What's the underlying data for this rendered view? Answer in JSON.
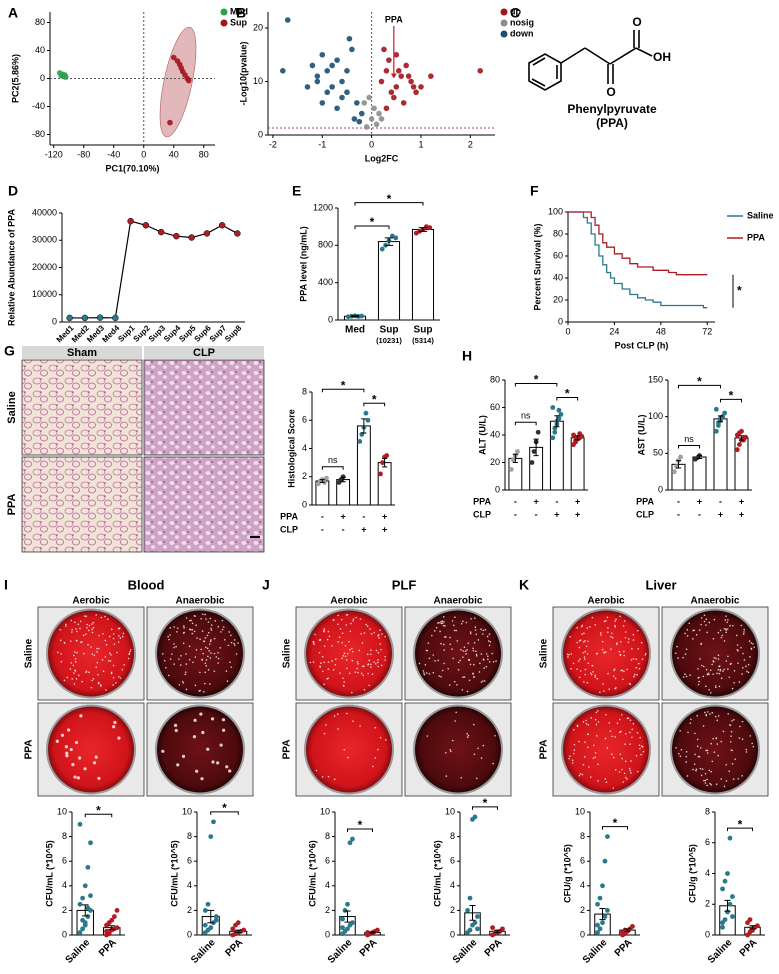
{
  "chart_data": [
    {
      "type": "scatter",
      "panel": "A",
      "xlabel": "PC1(70.10%)",
      "ylabel": "PC2(5.86%)",
      "xlim": [
        -125,
        95
      ],
      "xticks": [
        -120,
        -80,
        -40,
        0,
        40,
        80
      ],
      "ylim": [
        -95,
        95
      ],
      "yticks": [
        -80,
        -40,
        0,
        40,
        80
      ],
      "hline": 0,
      "vline": 0,
      "legend": "right",
      "series": [
        {
          "name": "Med",
          "color": "#2e9e4f",
          "x": [
            -112,
            -110,
            -108,
            -107,
            -105,
            -104
          ],
          "values": [
            8,
            4,
            6,
            3,
            5,
            2
          ]
        },
        {
          "name": "Sup",
          "color": "#a3141c",
          "x": [
            40,
            45,
            48,
            50,
            52,
            55,
            58,
            60,
            35
          ],
          "values": [
            30,
            25,
            20,
            15,
            10,
            5,
            0,
            -3,
            -63
          ]
        }
      ]
    },
    {
      "type": "scatter",
      "panel": "B",
      "xlabel": "Log2FC",
      "ylabel": "-Log10(pvalue)",
      "xlim": [
        -2.1,
        2.5
      ],
      "xticks": [
        -2,
        -1,
        0,
        1,
        2
      ],
      "ylim": [
        0,
        23
      ],
      "yticks": [
        0,
        10,
        20
      ],
      "hline": 1.3,
      "vline": 0,
      "legend": "right",
      "annotation": {
        "text": "PPA",
        "x": 0.45,
        "y": 10
      },
      "series": [
        {
          "name": "up",
          "color": "#a3141c",
          "x": [
            0.2,
            0.3,
            0.4,
            0.5,
            0.6,
            0.7,
            0.8,
            0.9,
            1.0,
            0.35,
            0.45,
            0.55,
            0.65,
            0.25,
            0.75,
            1.2,
            2.2,
            0.5,
            0.3,
            0.85
          ],
          "values": [
            10,
            12,
            8,
            9,
            11,
            13,
            10,
            8,
            9,
            14,
            7,
            12,
            6,
            16,
            11,
            11,
            12,
            15,
            5,
            9
          ]
        },
        {
          "name": "nosig",
          "color": "#8c8c8c",
          "x": [
            -0.1,
            0,
            0.05,
            -0.05,
            0.1,
            0.15,
            -0.15,
            0.2
          ],
          "values": [
            1.5,
            3,
            5,
            7,
            2,
            4,
            6,
            3
          ]
        },
        {
          "name": "down",
          "color": "#1b4f72",
          "x": [
            -1.8,
            -1.7,
            -1.2,
            -1.1,
            -1.0,
            -0.9,
            -0.8,
            -0.7,
            -0.6,
            -0.5,
            -0.4,
            -0.3,
            -0.2,
            -1.3,
            -0.9,
            -0.7,
            -0.5,
            -0.35,
            -1.0,
            -0.6,
            -0.25,
            -0.8,
            -0.45,
            -1.1
          ],
          "values": [
            12,
            21.5,
            13,
            11,
            15,
            12,
            9,
            14,
            10,
            8,
            16,
            6,
            4,
            9,
            8,
            5,
            12,
            3,
            6,
            7,
            2.5,
            13,
            18,
            10
          ]
        }
      ]
    },
    {
      "type": "line",
      "panel": "D",
      "ylabel": "Relative Abundance of PPA",
      "categories": [
        "Med1",
        "Med2",
        "Med3",
        "Med4",
        "Sup1",
        "Sup2",
        "Sup3",
        "Sup4",
        "Sup5",
        "Sup6",
        "Sup7",
        "Sup8"
      ],
      "values": [
        1500,
        1500,
        1600,
        1500,
        37000,
        35500,
        33000,
        31500,
        31000,
        32500,
        35500,
        32500
      ],
      "color": "#000000",
      "marker_colors": [
        "#2a7a8c",
        "#2a7a8c",
        "#2a7a8c",
        "#2a7a8c",
        "#b01c22",
        "#b01c22",
        "#b01c22",
        "#b01c22",
        "#b01c22",
        "#b01c22",
        "#b01c22",
        "#b01c22"
      ],
      "ylim": [
        0,
        40000
      ],
      "yticks": [
        0,
        10000,
        20000,
        30000,
        40000
      ]
    },
    {
      "type": "bar",
      "panel": "E",
      "ylabel": "PPA level (ng/mL)",
      "categories": [
        "Med",
        "Sup",
        "Sup"
      ],
      "sublabels": [
        null,
        "(10231)",
        "(5314)"
      ],
      "values": [
        40,
        840,
        970
      ],
      "errors": [
        5,
        40,
        20
      ],
      "points": [
        [
          35,
          40,
          45,
          38,
          42
        ],
        [
          760,
          800,
          850,
          900,
          880
        ],
        [
          930,
          950,
          970,
          1000,
          990
        ]
      ],
      "point_colors": [
        "#2a7a8c",
        "#2a7a8c",
        "#b01c22"
      ],
      "ylim": [
        0,
        1200
      ],
      "yticks": [
        0,
        400,
        800,
        1200
      ],
      "brackets": [
        {
          "text": "*",
          "span": [
            0,
            1
          ]
        },
        {
          "text": "*",
          "span": [
            0,
            2
          ]
        }
      ]
    },
    {
      "type": "step",
      "panel": "F",
      "xlabel": "Post CLP (h)",
      "ylabel": "Percent Survival (%)",
      "xlim": [
        0,
        76
      ],
      "xticks": [
        0,
        24,
        48,
        72
      ],
      "ylim": [
        0,
        100
      ],
      "yticks": [
        0,
        20,
        40,
        60,
        80,
        100
      ],
      "legend": "right",
      "annotation": "*",
      "series": [
        {
          "name": "Saline",
          "color": "#2a7a8c",
          "x": [
            0,
            6,
            8,
            10,
            12,
            14,
            16,
            18,
            20,
            22,
            24,
            28,
            32,
            36,
            40,
            44,
            48,
            60,
            70,
            72
          ],
          "values": [
            100,
            100,
            95,
            90,
            80,
            70,
            60,
            52,
            45,
            40,
            35,
            30,
            25,
            22,
            20,
            18,
            15,
            15,
            13,
            13
          ]
        },
        {
          "name": "PPA",
          "color": "#b01c22",
          "x": [
            0,
            10,
            12,
            14,
            16,
            18,
            20,
            24,
            28,
            32,
            36,
            44,
            52,
            56,
            72
          ],
          "values": [
            100,
            100,
            95,
            88,
            80,
            72,
            68,
            62,
            58,
            53,
            50,
            47,
            45,
            43,
            43
          ]
        }
      ]
    },
    {
      "type": "bar",
      "ylabel": "Histological Score",
      "factor_rows": [
        {
          "name": "PPA",
          "levels": [
            "-",
            "+",
            "-",
            "+"
          ]
        },
        {
          "name": "CLP",
          "levels": [
            "-",
            "-",
            "+",
            "+"
          ]
        }
      ],
      "values": [
        1.7,
        1.8,
        5.6,
        3.0
      ],
      "errors": [
        0.1,
        0.15,
        0.5,
        0.3
      ],
      "points": [
        [
          1.5,
          1.7,
          1.8,
          1.6,
          1.9
        ],
        [
          1.6,
          1.8,
          2.0
        ],
        [
          4.5,
          5,
          5.5,
          6.5,
          6
        ],
        [
          2.2,
          3,
          3.4,
          3.5
        ]
      ],
      "point_colors": [
        "#a0a0a0",
        "#303030",
        "#2a7a8c",
        "#b01c22"
      ],
      "ylim": [
        0,
        8
      ],
      "yticks": [
        0,
        2,
        4,
        6,
        8
      ],
      "brackets": [
        {
          "text": "ns",
          "span": [
            0,
            1
          ]
        },
        {
          "text": "*",
          "span": [
            0,
            2
          ]
        },
        {
          "text": "*",
          "span": [
            2,
            3
          ]
        }
      ]
    },
    {
      "type": "bar",
      "panel": "H",
      "ylabel": "ALT (U/L)",
      "factor_rows": [
        {
          "name": "PPA",
          "levels": [
            "-",
            "+",
            "-",
            "+"
          ]
        },
        {
          "name": "CLP",
          "levels": [
            "-",
            "-",
            "+",
            "+"
          ]
        }
      ],
      "values": [
        23,
        31,
        50,
        38
      ],
      "errors": [
        3,
        6,
        4,
        1.5
      ],
      "points": [
        [
          15,
          22,
          25,
          28
        ],
        [
          20,
          28,
          35,
          42
        ],
        [
          38,
          42,
          48,
          52,
          55,
          60,
          45,
          50,
          58
        ],
        [
          33,
          35,
          37,
          38,
          39,
          40,
          36,
          38,
          41
        ]
      ],
      "point_colors": [
        "#a0a0a0",
        "#303030",
        "#2a7a8c",
        "#b01c22"
      ],
      "ylim": [
        0,
        80
      ],
      "yticks": [
        0,
        20,
        40,
        60,
        80
      ],
      "brackets": [
        {
          "text": "ns",
          "span": [
            0,
            1
          ]
        },
        {
          "text": "*",
          "span": [
            0,
            2
          ]
        },
        {
          "text": "*",
          "span": [
            2,
            3
          ]
        }
      ]
    },
    {
      "type": "bar",
      "ylabel": "AST (U/L)",
      "factor_rows": [
        {
          "name": "PPA",
          "levels": [
            "-",
            "+",
            "-",
            "+"
          ]
        },
        {
          "name": "CLP",
          "levels": [
            "-",
            "-",
            "+",
            "+"
          ]
        }
      ],
      "values": [
        35,
        45,
        97,
        71
      ],
      "errors": [
        5,
        2,
        4,
        3
      ],
      "points": [
        [
          25,
          32,
          40,
          45
        ],
        [
          42,
          44,
          47
        ],
        [
          80,
          88,
          95,
          100,
          105,
          110,
          92,
          98,
          100
        ],
        [
          55,
          62,
          68,
          70,
          72,
          75,
          78,
          80,
          68
        ]
      ],
      "point_colors": [
        "#a0a0a0",
        "#303030",
        "#2a7a8c",
        "#b01c22"
      ],
      "ylim": [
        0,
        150
      ],
      "yticks": [
        0,
        50,
        100,
        150
      ],
      "brackets": [
        {
          "text": "ns",
          "span": [
            0,
            1
          ]
        },
        {
          "text": "*",
          "span": [
            0,
            2
          ]
        },
        {
          "text": "*",
          "span": [
            2,
            3
          ]
        }
      ]
    },
    {
      "type": "bar",
      "ylabel": "CFU/mL (*10^5)",
      "categories": [
        "Saline",
        "PPA"
      ],
      "values": [
        2.0,
        0.6
      ],
      "errors": [
        0.45,
        0.15
      ],
      "points": [
        [
          0.2,
          0.5,
          1,
          1.5,
          2,
          2.5,
          3,
          4,
          5.5,
          7.5,
          9,
          1.2,
          0.8,
          2.2,
          3.2
        ],
        [
          0,
          0.2,
          0.4,
          0.5,
          0.6,
          0.8,
          1,
          1.2,
          1.5,
          2,
          0.3,
          0.1
        ]
      ],
      "point_colors": [
        "#2a7a8c",
        "#b01c22"
      ],
      "ylim": [
        0,
        10
      ],
      "yticks": [
        0,
        2,
        4,
        6,
        8,
        10
      ],
      "brackets": [
        {
          "text": "*",
          "span": [
            0,
            1
          ]
        }
      ]
    },
    {
      "type": "bar",
      "ylabel": "CFU/mL (*10^5)",
      "categories": [
        "Saline",
        "PPA"
      ],
      "values": [
        1.5,
        0.3
      ],
      "errors": [
        0.5,
        0.1
      ],
      "points": [
        [
          0.2,
          0.4,
          0.6,
          1,
          1.5,
          2,
          2.5,
          8,
          9.2,
          1.2,
          0.8
        ],
        [
          0,
          0.1,
          0.2,
          0.3,
          0.4,
          0.5,
          0.8,
          1
        ]
      ],
      "point_colors": [
        "#2a7a8c",
        "#b01c22"
      ],
      "ylim": [
        0,
        10
      ],
      "yticks": [
        0,
        2,
        4,
        6,
        8,
        10
      ],
      "brackets": [
        {
          "text": "*",
          "span": [
            0,
            1
          ]
        }
      ]
    },
    {
      "type": "bar",
      "ylabel": "CFU/mL (*10^6)",
      "categories": [
        "Saline",
        "PPA"
      ],
      "values": [
        1.5,
        0.2
      ],
      "errors": [
        0.45,
        0.05
      ],
      "points": [
        [
          0.1,
          0.3,
          0.5,
          0.8,
          1,
          1.3,
          2,
          2.5,
          7.5,
          7.8,
          0.6
        ],
        [
          0,
          0.1,
          0.2,
          0.3,
          0.4,
          0.2,
          0.1
        ]
      ],
      "point_colors": [
        "#2a7a8c",
        "#b01c22"
      ],
      "ylim": [
        0,
        10
      ],
      "yticks": [
        0,
        2,
        4,
        6,
        8,
        10
      ],
      "brackets": [
        {
          "text": "*",
          "span": [
            0,
            1
          ]
        }
      ]
    },
    {
      "type": "bar",
      "ylabel": "CFU/mL (*10^6)",
      "categories": [
        "Saline",
        "PPA"
      ],
      "values": [
        1.8,
        0.3
      ],
      "errors": [
        0.6,
        0.1
      ],
      "points": [
        [
          0.2,
          0.4,
          0.8,
          1,
          1.5,
          2,
          3,
          9.4,
          9.6,
          0.5
        ],
        [
          0,
          0.1,
          0.2,
          0.3,
          0.5,
          0.6,
          0.2
        ]
      ],
      "point_colors": [
        "#2a7a8c",
        "#b01c22"
      ],
      "ylim": [
        0,
        10
      ],
      "yticks": [
        0,
        2,
        4,
        6,
        8,
        10
      ],
      "brackets": [
        {
          "text": "*",
          "span": [
            0,
            1
          ]
        }
      ]
    },
    {
      "type": "bar",
      "ylabel": "CFU/g (*10^5)",
      "categories": [
        "Saline",
        "PPA"
      ],
      "values": [
        1.7,
        0.4
      ],
      "errors": [
        0.45,
        0.1
      ],
      "points": [
        [
          0.2,
          0.5,
          1,
          1.5,
          2,
          2.5,
          3,
          4,
          6,
          8,
          0.8
        ],
        [
          0,
          0.1,
          0.3,
          0.5,
          0.7,
          0.2,
          0.4
        ]
      ],
      "point_colors": [
        "#2a7a8c",
        "#b01c22"
      ],
      "ylim": [
        0,
        10
      ],
      "yticks": [
        0,
        2,
        4,
        6,
        8,
        10
      ],
      "brackets": [
        {
          "text": "*",
          "span": [
            0,
            1
          ]
        }
      ]
    },
    {
      "type": "bar",
      "ylabel": "CFU/g (*10^5)",
      "categories": [
        "Saline",
        "PPA"
      ],
      "values": [
        1.9,
        0.5
      ],
      "errors": [
        0.35,
        0.1
      ],
      "points": [
        [
          0.5,
          1,
          1.5,
          2,
          2.5,
          3,
          3.5,
          4,
          6.3,
          1.2,
          0.8
        ],
        [
          0,
          0.2,
          0.4,
          0.5,
          0.6,
          0.8,
          1,
          0.3
        ]
      ],
      "point_colors": [
        "#2a7a8c",
        "#b01c22"
      ],
      "ylim": [
        0,
        8
      ],
      "yticks": [
        0,
        2,
        4,
        6,
        8
      ],
      "brackets": [
        {
          "text": "*",
          "span": [
            0,
            1
          ]
        }
      ]
    }
  ],
  "structure": {
    "panel": "C",
    "atoms": [
      "O",
      "O",
      "OH"
    ],
    "name": "Phenylpyruvate",
    "abbr": "(PPA)"
  },
  "histology": {
    "panel": "G",
    "columns": [
      "Sham",
      "CLP"
    ],
    "rows": [
      "Saline",
      "PPA"
    ]
  },
  "plates": [
    {
      "panel": "I",
      "title": "Blood",
      "columns": [
        "Aerobic",
        "Anaerobic"
      ],
      "rows": [
        "Saline",
        "PPA"
      ]
    },
    {
      "panel": "J",
      "title": "PLF",
      "columns": [
        "Aerobic",
        "Anaerobic"
      ],
      "rows": [
        "Saline",
        "PPA"
      ]
    },
    {
      "panel": "K",
      "title": "Liver",
      "columns": [
        "Aerobic",
        "Anaerobic"
      ],
      "rows": [
        "Saline",
        "PPA"
      ]
    }
  ]
}
